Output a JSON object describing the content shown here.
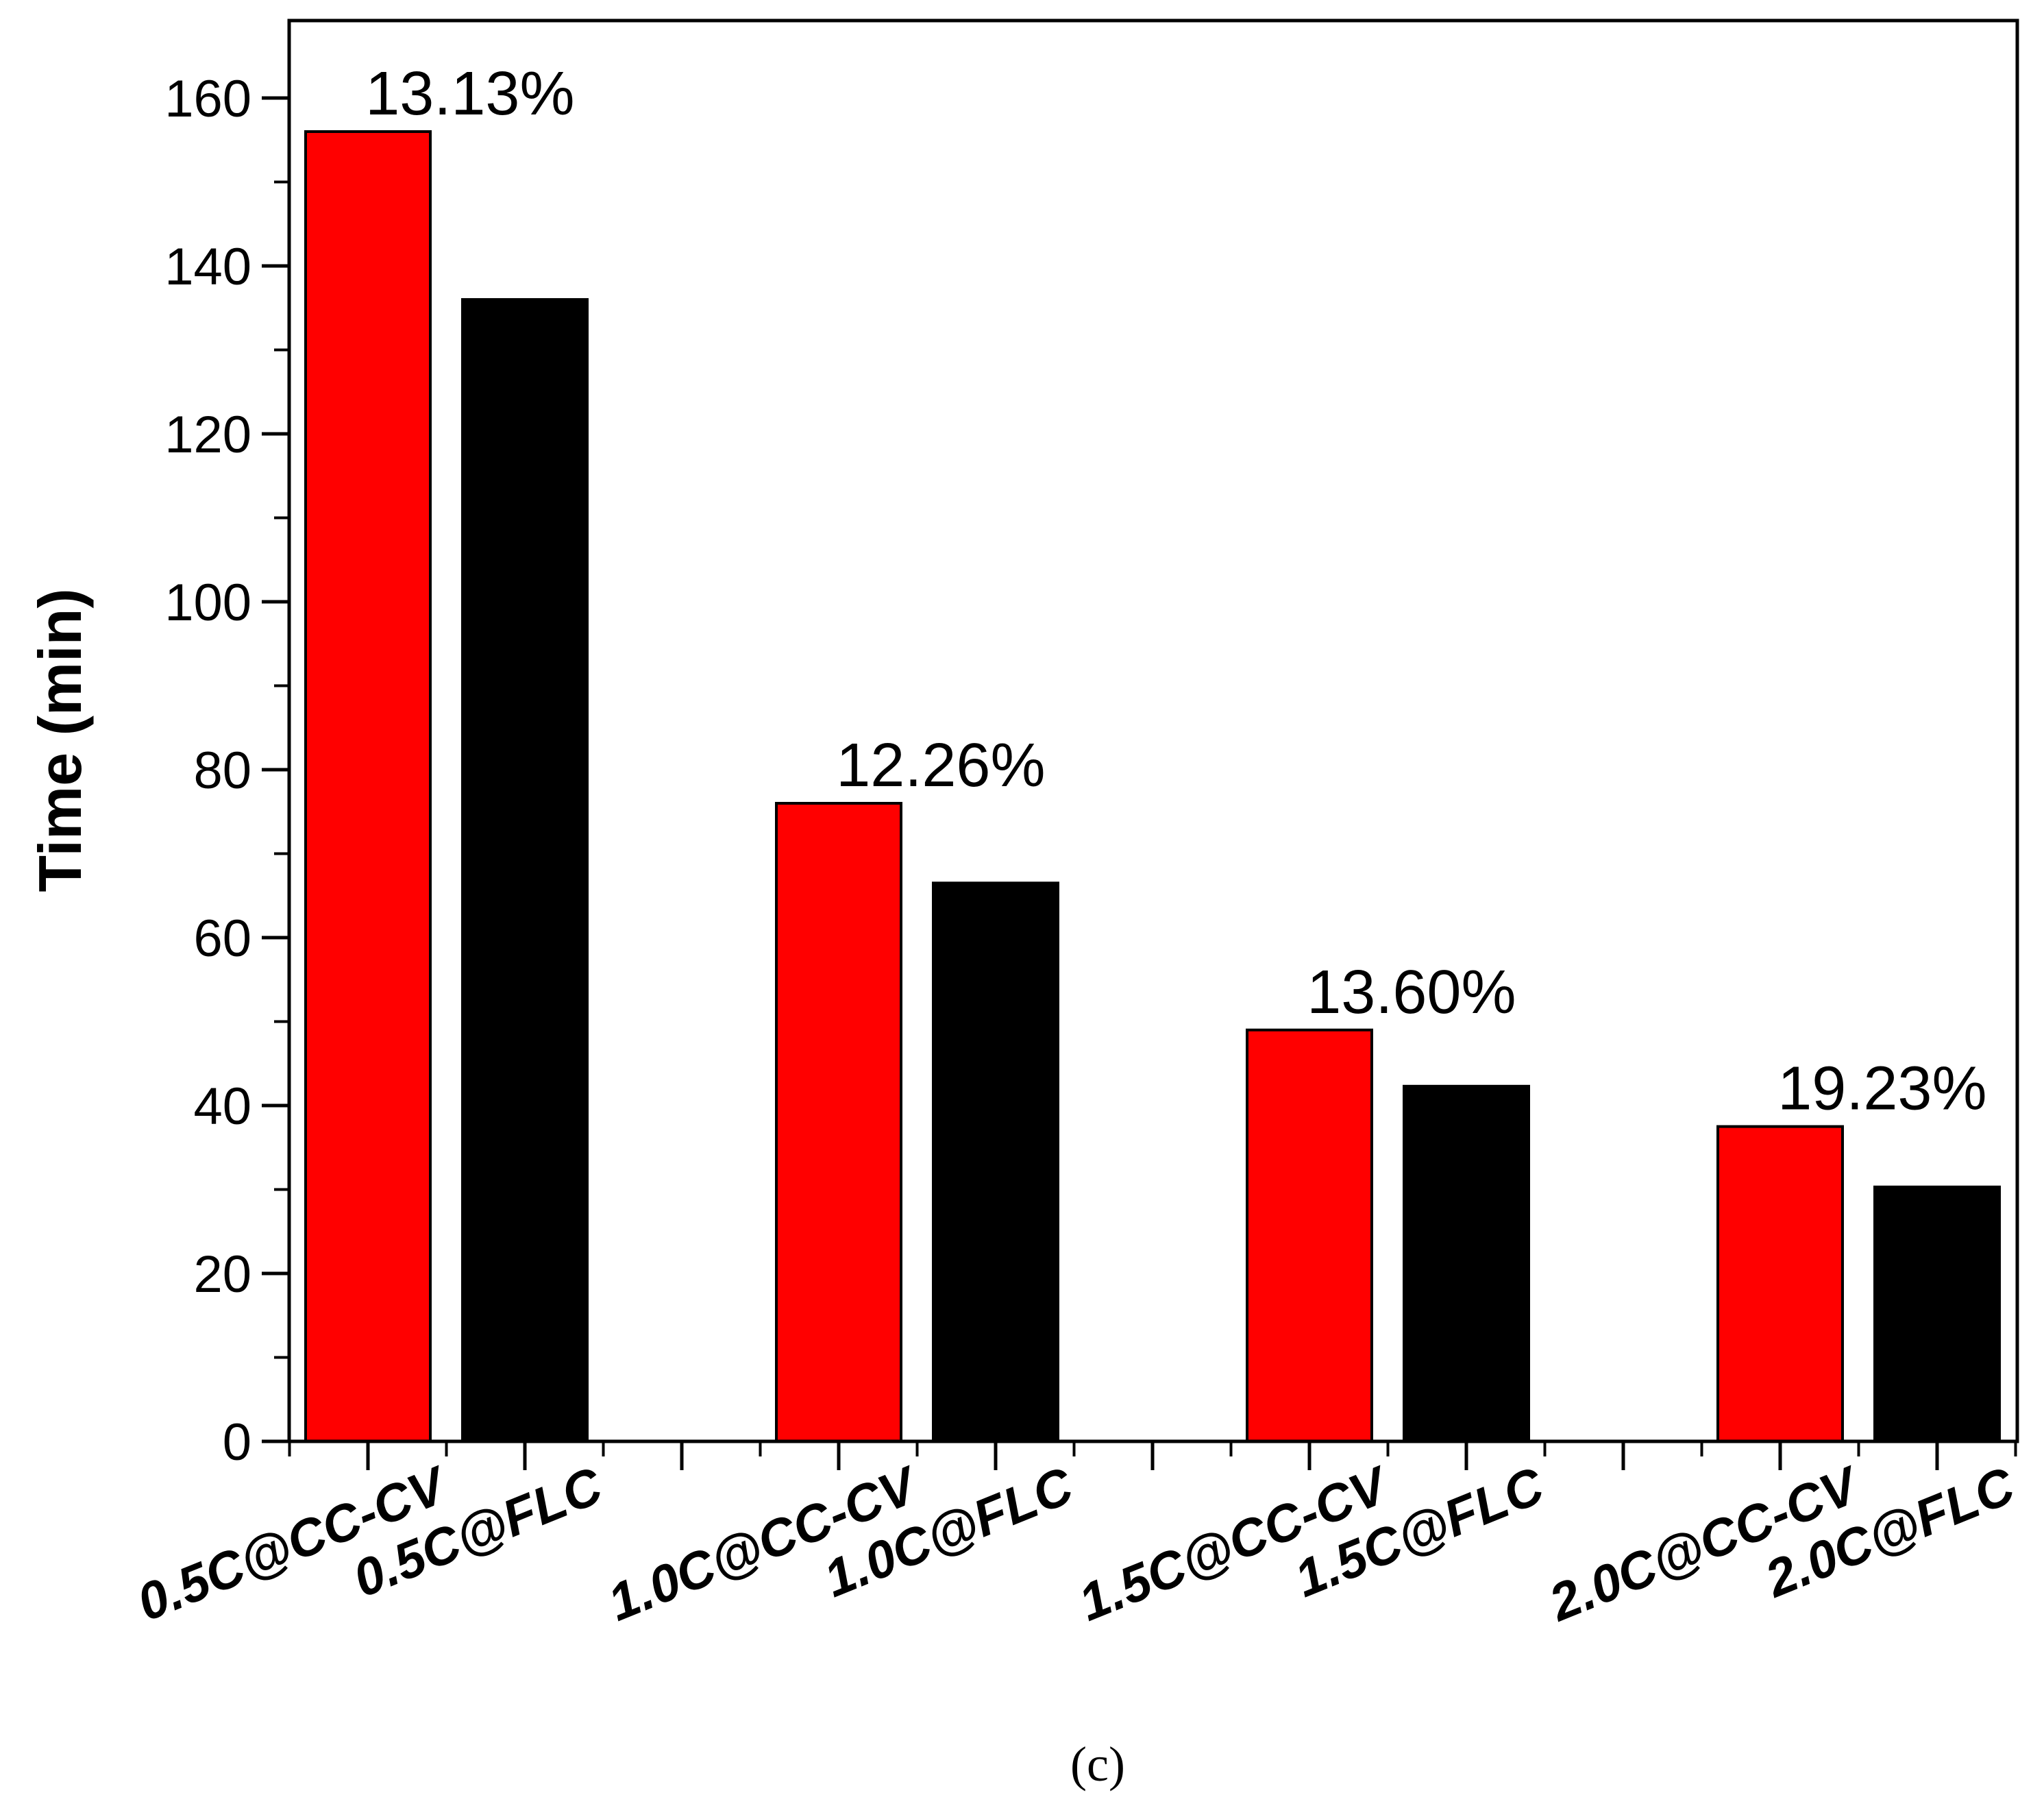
{
  "chart_data": {
    "type": "bar",
    "categories": [
      "0.5C@CC-CV",
      "0.5C@FLC",
      "1.0C@CC-CV",
      "1.0C@FLC",
      "1.5C@CC-CV",
      "1.5C@FLC",
      "2.0C@CC-CV",
      "2.0C@FLC"
    ],
    "values": [
      156,
      136,
      76,
      66.5,
      49,
      42.3,
      37.5,
      30.3
    ],
    "bar_colors": [
      "#ff0000",
      "#000000",
      "#ff0000",
      "#000000",
      "#ff0000",
      "#000000",
      "#ff0000",
      "#000000"
    ],
    "groups": [
      {
        "annotation": "13.13%"
      },
      {
        "annotation": "12.26%"
      },
      {
        "annotation": "13.60%"
      },
      {
        "annotation": "19.23%"
      }
    ],
    "ylabel": "Time (min)",
    "ylim": [
      0,
      165
    ],
    "yticks": [
      "0",
      "20",
      "40",
      "60",
      "80",
      "100",
      "120",
      "140",
      "160"
    ],
    "grid": false,
    "caption": "(c)"
  }
}
